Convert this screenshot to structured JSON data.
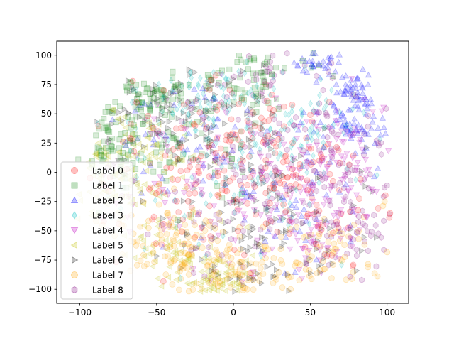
{
  "chart_data": {
    "type": "scatter",
    "title": "",
    "xlabel": "",
    "ylabel": "",
    "xlim": [
      -115,
      114
    ],
    "ylim": [
      -112,
      112
    ],
    "xticks": [
      -100,
      -50,
      0,
      50,
      100
    ],
    "yticks": [
      -100,
      -75,
      -50,
      -25,
      0,
      25,
      50,
      75,
      100
    ],
    "grid": false,
    "legend_position": "lower left",
    "marker_alpha": 0.15,
    "series": [
      {
        "name": "Label 0",
        "marker": "circle",
        "color": "#ff0000",
        "clusters": [
          [
            20,
            15,
            25
          ],
          [
            -20,
            -20,
            35
          ],
          [
            60,
            -30,
            30
          ],
          [
            -10,
            30,
            30
          ]
        ],
        "count": 250
      },
      {
        "name": "Label 1",
        "marker": "square",
        "color": "#008000",
        "clusters": [
          [
            -55,
            70,
            15
          ],
          [
            -80,
            25,
            15
          ],
          [
            5,
            85,
            20
          ],
          [
            -40,
            20,
            30
          ]
        ],
        "count": 250
      },
      {
        "name": "Label 2",
        "marker": "triangle-up",
        "color": "#0000ff",
        "clusters": [
          [
            55,
            95,
            8
          ],
          [
            80,
            70,
            8
          ],
          [
            75,
            40,
            10
          ],
          [
            -30,
            40,
            30
          ],
          [
            40,
            -30,
            35
          ]
        ],
        "count": 250
      },
      {
        "name": "Label 3",
        "marker": "diamond",
        "color": "#00bfbf",
        "clusters": [
          [
            -20,
            60,
            30
          ],
          [
            30,
            40,
            30
          ],
          [
            0,
            0,
            40
          ]
        ],
        "count": 250
      },
      {
        "name": "Label 4",
        "marker": "triangle-down",
        "color": "#bf00bf",
        "clusters": [
          [
            70,
            -20,
            25
          ],
          [
            40,
            -50,
            25
          ],
          [
            -30,
            0,
            35
          ],
          [
            70,
            30,
            20
          ]
        ],
        "count": 250
      },
      {
        "name": "Label 5",
        "marker": "triangle-left",
        "color": "#bfbf00",
        "clusters": [
          [
            -80,
            -10,
            15
          ],
          [
            -40,
            -70,
            20
          ],
          [
            -60,
            20,
            20
          ],
          [
            -10,
            -90,
            10
          ]
        ],
        "count": 250
      },
      {
        "name": "Label 6",
        "marker": "triangle-right",
        "color": "#000000",
        "clusters": [
          [
            0,
            10,
            45
          ],
          [
            20,
            -60,
            30
          ],
          [
            -40,
            50,
            25
          ]
        ],
        "count": 250
      },
      {
        "name": "Label 7",
        "marker": "circle",
        "color": "#ffa500",
        "clusters": [
          [
            -20,
            -80,
            20
          ],
          [
            10,
            -90,
            15
          ],
          [
            60,
            -70,
            20
          ],
          [
            -50,
            -60,
            20
          ]
        ],
        "count": 250
      },
      {
        "name": "Label 8",
        "marker": "hexagon",
        "color": "#800080",
        "clusters": [
          [
            60,
            10,
            30
          ],
          [
            -10,
            -40,
            40
          ],
          [
            30,
            70,
            25
          ],
          [
            80,
            -50,
            20
          ]
        ],
        "count": 250
      }
    ]
  }
}
